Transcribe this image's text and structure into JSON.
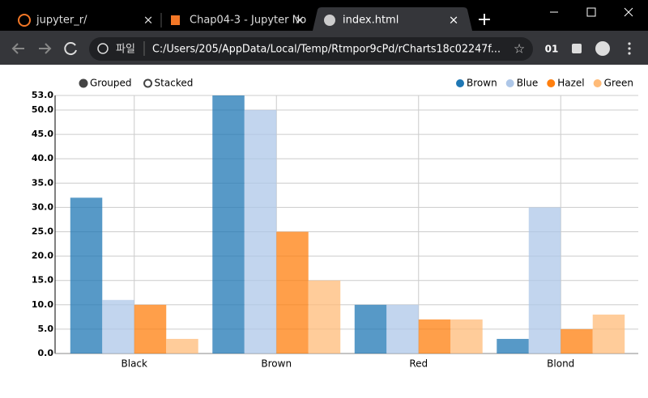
{
  "browser": {
    "tabs": [
      "jupyter_r/",
      "Chap04-3 - Jupyter No",
      "index.html"
    ],
    "address_scheme": "파일",
    "address": "C:/Users/205/AppData/Local/Temp/Rtmpor9cPd/rCharts18c02247f...",
    "profile_badge": "01"
  },
  "chart_data": {
    "type": "bar",
    "controls": [
      "Grouped",
      "Stacked"
    ],
    "categories": [
      "Black",
      "Brown",
      "Red",
      "Blond"
    ],
    "series": [
      {
        "name": "Brown",
        "color": "#1f77b4",
        "values": [
          32,
          53,
          10,
          3
        ]
      },
      {
        "name": "Blue",
        "color": "#aec7e8",
        "values": [
          11,
          50,
          10,
          30
        ]
      },
      {
        "name": "Hazel",
        "color": "#ff7f0e",
        "values": [
          10,
          25,
          7,
          5
        ]
      },
      {
        "name": "Green",
        "color": "#ffbb78",
        "values": [
          3,
          15,
          7,
          8
        ]
      }
    ],
    "ylim": [
      0,
      53
    ],
    "yticks": [
      {
        "value": 0,
        "label": "0.0"
      },
      {
        "value": 5,
        "label": "5.0"
      },
      {
        "value": 10,
        "label": "10.0"
      },
      {
        "value": 15,
        "label": "15.0"
      },
      {
        "value": 20,
        "label": "20.0"
      },
      {
        "value": 25,
        "label": "25.0"
      },
      {
        "value": 30,
        "label": "30.0"
      },
      {
        "value": 35,
        "label": "35.0"
      },
      {
        "value": 40,
        "label": "40.0"
      },
      {
        "value": 45,
        "label": "45.0"
      },
      {
        "value": 50,
        "label": "50.0"
      },
      {
        "value": 53,
        "label": "53.0"
      }
    ],
    "grid": true,
    "legend": "top-right"
  }
}
